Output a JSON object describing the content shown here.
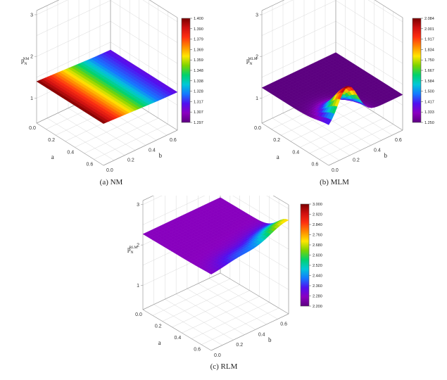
{
  "chart_data": [
    {
      "type": "surface",
      "panel_caption": "(a) NM",
      "zlabel": {
        "main": "p",
        "sub": "N",
        "sup": "NM"
      },
      "xlabel": "a",
      "ylabel": "b",
      "x_ticks": [
        "0.0",
        "0.2",
        "0.4",
        "0.6"
      ],
      "y_ticks": [
        "0.0",
        "0.2",
        "0.4",
        "0.6"
      ],
      "z_ticks": [
        "1",
        "2",
        "3"
      ],
      "xlim": [
        0,
        0.7
      ],
      "ylim": [
        0,
        0.7
      ],
      "zlim": [
        0.4,
        3.1
      ],
      "colorbar": {
        "min": 1.297,
        "max": 1.4,
        "ticks": [
          "1.297",
          "1.307",
          "1.317",
          "1.328",
          "1.338",
          "1.348",
          "1.359",
          "1.369",
          "1.379",
          "1.390",
          "1.400"
        ]
      },
      "surface_shape": "nm",
      "colormap": [
        "#7a0000",
        "#d01010",
        "#ff3010",
        "#ff8c00",
        "#ffe600",
        "#7ad400",
        "#00d26e",
        "#00c8d8",
        "#1478ff",
        "#5010f0",
        "#8a00c0",
        "#5c0080"
      ]
    },
    {
      "type": "surface",
      "panel_caption": "(b) MLM",
      "zlabel": {
        "main": "p",
        "sub": "N",
        "sup": "MLM"
      },
      "xlabel": "a",
      "ylabel": "b",
      "x_ticks": [
        "0.0",
        "0.2",
        "0.4",
        "0.6"
      ],
      "y_ticks": [
        "0.0",
        "0.2",
        "0.4",
        "0.6"
      ],
      "z_ticks": [
        "1",
        "2",
        "3"
      ],
      "xlim": [
        0,
        0.7
      ],
      "ylim": [
        0,
        0.7
      ],
      "zlim": [
        0.4,
        3.1
      ],
      "colorbar": {
        "min": 1.25,
        "max": 2.084,
        "ticks": [
          "1.250",
          "1.333",
          "1.417",
          "1.500",
          "1.584",
          "1.667",
          "1.750",
          "1.834",
          "1.917",
          "2.001",
          "2.084"
        ]
      },
      "surface_shape": "mlm",
      "colormap": [
        "#7a0000",
        "#d01010",
        "#ff3010",
        "#ff8c00",
        "#ffe600",
        "#7ad400",
        "#00d26e",
        "#00c8d8",
        "#1478ff",
        "#5010f0",
        "#8a00c0",
        "#5c0080"
      ]
    },
    {
      "type": "surface",
      "panel_caption": "(c) RLM",
      "zlabel": {
        "main": "p",
        "sub": "N",
        "sup": "RLM"
      },
      "xlabel": "a",
      "ylabel": "b",
      "x_ticks": [
        "0.0",
        "0.2",
        "0.4",
        "0.6"
      ],
      "y_ticks": [
        "0.0",
        "0.2",
        "0.4",
        "0.6"
      ],
      "z_ticks": [
        "1",
        "2",
        "3"
      ],
      "xlim": [
        0,
        0.7
      ],
      "ylim": [
        0,
        0.7
      ],
      "zlim": [
        0.4,
        3.1
      ],
      "colorbar": {
        "min": 2.2,
        "max": 3.0,
        "ticks": [
          "2.200",
          "2.280",
          "2.360",
          "2.440",
          "2.520",
          "2.600",
          "2.680",
          "2.760",
          "2.840",
          "2.920",
          "3.000"
        ]
      },
      "surface_shape": "rlm",
      "colormap": [
        "#7a0000",
        "#d01010",
        "#ff3010",
        "#ff8c00",
        "#ffe600",
        "#7ad400",
        "#00d26e",
        "#00c8d8",
        "#1478ff",
        "#5010f0",
        "#8a00c0",
        "#5c0080"
      ]
    }
  ]
}
